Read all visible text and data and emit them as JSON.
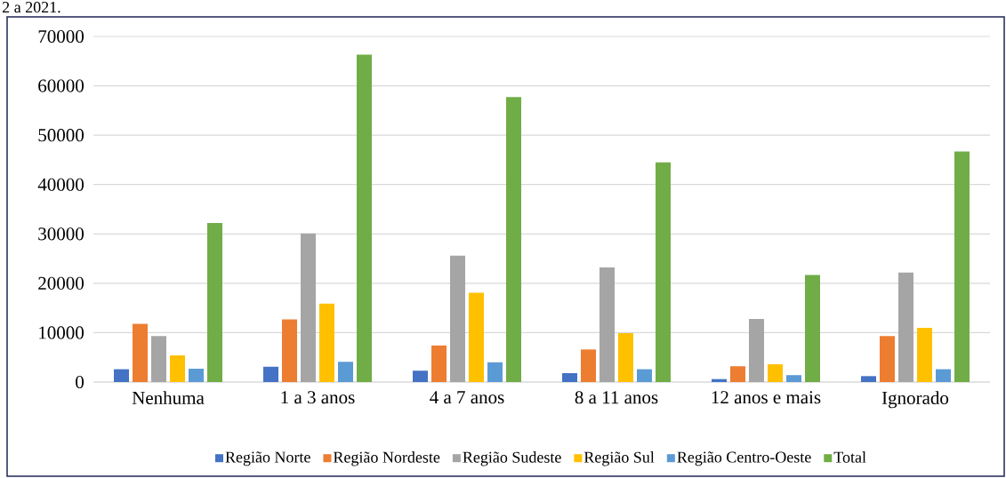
{
  "chart_data": {
    "type": "bar",
    "annotations": [
      "2 a 2021."
    ],
    "categories": [
      "Nenhuma",
      "1 a 3 anos",
      "4 a 7 anos",
      "8 a 11 anos",
      "12 anos e mais",
      "Ignorado"
    ],
    "series": [
      {
        "name": "Região Norte",
        "color": "#4472c4",
        "values": [
          2600,
          3100,
          2300,
          1800,
          600,
          1200
        ]
      },
      {
        "name": "Região Nordeste",
        "color": "#ed7d31",
        "values": [
          11800,
          12700,
          7400,
          6600,
          3200,
          9300
        ]
      },
      {
        "name": "Região Sudeste",
        "color": "#a5a5a5",
        "values": [
          9300,
          30100,
          25600,
          23200,
          12800,
          22200
        ]
      },
      {
        "name": "Região Sul",
        "color": "#ffc000",
        "values": [
          5400,
          15900,
          18100,
          9900,
          3600,
          11000
        ]
      },
      {
        "name": "Região Centro-Oeste",
        "color": "#5b9bd5",
        "values": [
          2700,
          4100,
          4000,
          2600,
          1400,
          2600
        ]
      },
      {
        "name": "Total",
        "color": "#70ad47",
        "values": [
          32200,
          66300,
          57700,
          44500,
          21700,
          46700
        ]
      }
    ],
    "ylim": [
      0,
      70000
    ],
    "yticks": [
      0,
      10000,
      20000,
      30000,
      40000,
      50000,
      60000,
      70000
    ],
    "grid": "y",
    "legend": "bottom"
  }
}
